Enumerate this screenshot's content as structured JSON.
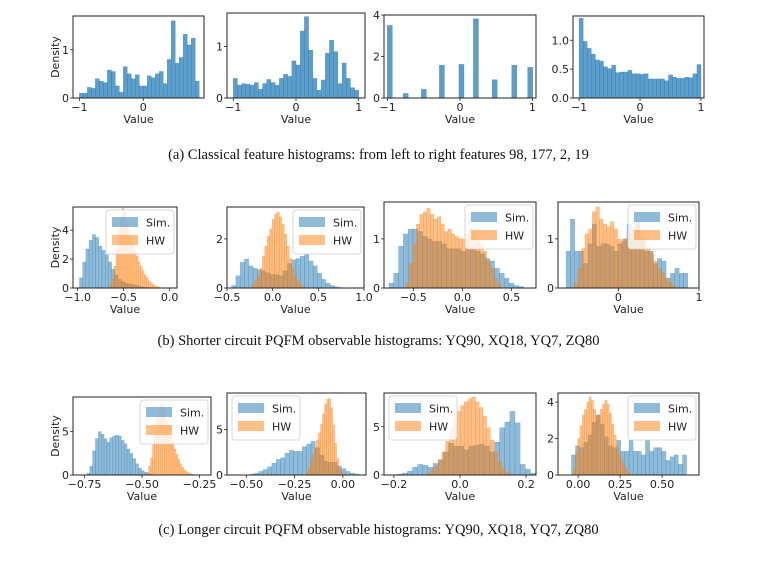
{
  "captions": {
    "a": "(a) Classical feature histograms: from left to right features 98, 177, 2, 19",
    "b": "(b) Shorter circuit PQFM observable histograms: YQ90, XQ18, YQ7, ZQ80",
    "c": "(c) Longer circuit PQFM observable histograms: YQ90, XQ18, YQ7, ZQ80"
  },
  "colors": {
    "sim": "#1f77b4",
    "hw": "#ff7f0e"
  },
  "chart_data": [
    {
      "type": "bar",
      "row": "a",
      "panel": 1,
      "feature": 98,
      "xlabel": "Value",
      "ylabel": "Density",
      "xlim": [
        -1.1,
        0.95
      ],
      "ylim": [
        0,
        1.7
      ],
      "xticks": [
        -1,
        0
      ],
      "xticklabels": [
        "−1",
        "0"
      ],
      "yticks": [
        0,
        1
      ],
      "yticklabels": [
        "0",
        "1"
      ],
      "bin_start": -1.0,
      "bin_width": 0.0625,
      "series": [
        {
          "name": "feature",
          "values": [
            0.1,
            0.1,
            0.22,
            0.2,
            0.4,
            0.35,
            0.32,
            0.58,
            0.55,
            0.25,
            0.12,
            0.65,
            0.5,
            0.4,
            0.48,
            0.25,
            0.25,
            0.46,
            0.42,
            0.5,
            0.55,
            0.3,
            0.8,
            1.6,
            0.72,
            0.84,
            1.32,
            1.1,
            1.24,
            0.35
          ]
        }
      ]
    },
    {
      "type": "bar",
      "row": "a",
      "panel": 2,
      "feature": 177,
      "xlabel": "Value",
      "ylabel": "",
      "xlim": [
        -1.1,
        1.1
      ],
      "ylim": [
        0,
        1.65
      ],
      "xticks": [
        -1,
        0,
        1
      ],
      "xticklabels": [
        "−1",
        "0",
        "1"
      ],
      "yticks": [
        0,
        1
      ],
      "yticklabels": [
        "0",
        "1"
      ],
      "bin_start": -1.0,
      "bin_width": 0.0667,
      "series": [
        {
          "name": "feature",
          "values": [
            0.38,
            0.25,
            0.28,
            0.27,
            0.25,
            0.3,
            0.17,
            0.28,
            0.36,
            0.3,
            0.25,
            0.38,
            0.46,
            0.42,
            0.72,
            0.64,
            1.3,
            1.58,
            0.93,
            0.38,
            0.15,
            0.35,
            0.87,
            1.12,
            0.9,
            0.28,
            0.68,
            0.38,
            0.2,
            0.15
          ]
        }
      ]
    },
    {
      "type": "bar",
      "row": "a",
      "panel": 3,
      "feature": 2,
      "xlabel": "Value",
      "ylabel": "",
      "xlim": [
        -1.05,
        1.05
      ],
      "ylim": [
        0,
        4.0
      ],
      "xticks": [
        -1,
        0,
        1
      ],
      "xticklabels": [
        "−1",
        "0",
        "1"
      ],
      "yticks": [
        0,
        2,
        4
      ],
      "yticklabels": [
        "0",
        "2",
        "4"
      ],
      "bar_width": 0.07,
      "series": [
        {
          "name": "feature",
          "x": [
            -0.97,
            -0.75,
            -0.5,
            -0.25,
            0.02,
            0.22,
            0.48,
            0.75,
            0.97
          ],
          "values": [
            3.5,
            0.22,
            0.42,
            1.58,
            1.62,
            3.82,
            0.88,
            1.58,
            1.48
          ]
        }
      ]
    },
    {
      "type": "bar",
      "row": "a",
      "panel": 4,
      "feature": 19,
      "xlabel": "Value",
      "ylabel": "",
      "xlim": [
        -1.1,
        1.05
      ],
      "ylim": [
        0,
        1.42
      ],
      "xticks": [
        -1,
        0,
        1
      ],
      "xticklabels": [
        "−1",
        "0",
        "1"
      ],
      "yticks": [
        0,
        0.5,
        1.0
      ],
      "yticklabels": [
        "0.0",
        "0.5",
        "1.0"
      ],
      "bin_start": -1.0,
      "bin_width": 0.0667,
      "series": [
        {
          "name": "feature",
          "values": [
            1.38,
            0.98,
            0.86,
            0.76,
            0.66,
            0.64,
            0.54,
            0.51,
            0.57,
            0.44,
            0.45,
            0.45,
            0.48,
            0.42,
            0.42,
            0.41,
            0.42,
            0.33,
            0.33,
            0.33,
            0.33,
            0.3,
            0.4,
            0.36,
            0.34,
            0.34,
            0.36,
            0.35,
            0.42,
            0.58
          ]
        }
      ]
    },
    {
      "type": "bar",
      "row": "b",
      "panel": 1,
      "observable": "YQ90",
      "xlabel": "Value",
      "ylabel": "Density",
      "xlim": [
        -1.05,
        0.08
      ],
      "ylim": [
        0,
        5.6
      ],
      "xticks": [
        -1.0,
        -0.5,
        0.0
      ],
      "xticklabels": [
        "−1.0",
        "−0.5",
        "0.0"
      ],
      "yticks": [
        0,
        2,
        4
      ],
      "yticklabels": [
        "0",
        "2",
        "4"
      ],
      "legend": [
        "Sim.",
        "HW"
      ],
      "legend_position": "top-right",
      "series": [
        {
          "name": "Sim.",
          "bin_start": -0.98,
          "bin_width": 0.035,
          "values": [
            0.7,
            1.8,
            2.7,
            3.3,
            3.7,
            3.5,
            2.9,
            2.6,
            2.3,
            1.8,
            1.3,
            0.9,
            0.6,
            0.45,
            0.35,
            0.3,
            0.25,
            0.2,
            0.15,
            0.1,
            0.06,
            0.03
          ]
        },
        {
          "name": "HW",
          "bin_start": -0.65,
          "bin_width": 0.022,
          "values": [
            0.2,
            0.6,
            1.5,
            2.7,
            4.0,
            4.8,
            5.5,
            5.2,
            4.5,
            4.0,
            3.6,
            3.1,
            2.6,
            2.2,
            1.8,
            1.5,
            1.2,
            0.9,
            0.7,
            0.5,
            0.35,
            0.25,
            0.15,
            0.1,
            0.05
          ]
        }
      ]
    },
    {
      "type": "bar",
      "row": "b",
      "panel": 2,
      "observable": "XQ18",
      "xlabel": "Value",
      "ylabel": "",
      "xlim": [
        -0.5,
        1.0
      ],
      "ylim": [
        0,
        3.3
      ],
      "xticks": [
        -0.5,
        0.0,
        0.5,
        1.0
      ],
      "xticklabels": [
        "−0.5",
        "0.0",
        "0.5",
        "1.0"
      ],
      "yticks": [
        0,
        2
      ],
      "yticklabels": [
        "0",
        "2"
      ],
      "legend": [
        "Sim.",
        "HW"
      ],
      "legend_position": "top-right",
      "series": [
        {
          "name": "Sim.",
          "bin_start": -0.45,
          "bin_width": 0.047,
          "values": [
            0.1,
            0.5,
            1.05,
            1.18,
            0.9,
            0.8,
            0.75,
            0.7,
            0.62,
            0.55,
            0.55,
            0.5,
            0.7,
            1.0,
            1.15,
            1.2,
            1.3,
            1.38,
            1.1,
            0.9,
            0.6,
            0.35,
            0.2,
            0.1,
            0.05,
            0.02
          ]
        },
        {
          "name": "HW",
          "bin_start": -0.25,
          "bin_width": 0.027,
          "values": [
            0.05,
            0.15,
            0.3,
            0.5,
            0.8,
            1.3,
            1.7,
            2.1,
            2.4,
            2.8,
            3.0,
            3.1,
            2.9,
            2.6,
            2.2,
            1.7,
            1.2,
            0.8,
            0.5,
            0.3,
            0.15,
            0.05
          ]
        }
      ]
    },
    {
      "type": "bar",
      "row": "b",
      "panel": 3,
      "observable": "YQ7",
      "xlabel": "Value",
      "ylabel": "",
      "xlim": [
        -0.8,
        0.75
      ],
      "ylim": [
        0,
        1.75
      ],
      "xticks": [
        -0.5,
        0.0,
        0.5
      ],
      "xticklabels": [
        "−0.5",
        "0.0",
        "0.5"
      ],
      "yticks": [
        0,
        1
      ],
      "yticklabels": [
        "0",
        "1"
      ],
      "legend": [
        "Sim.",
        "HW"
      ],
      "legend_position": "top-right",
      "series": [
        {
          "name": "Sim.",
          "bin_start": -0.75,
          "bin_width": 0.049,
          "values": [
            0.1,
            0.3,
            0.85,
            1.1,
            1.2,
            1.2,
            1.15,
            1.05,
            1.0,
            0.95,
            0.95,
            0.9,
            0.8,
            0.8,
            0.8,
            0.75,
            0.8,
            0.85,
            0.75,
            0.7,
            0.6,
            0.55,
            0.4,
            0.3,
            0.2,
            0.1,
            0.05,
            0.03
          ]
        },
        {
          "name": "HW",
          "bin_start": -0.58,
          "bin_width": 0.036,
          "values": [
            0.1,
            0.5,
            0.9,
            1.3,
            1.5,
            1.55,
            1.62,
            1.5,
            1.4,
            1.45,
            1.3,
            1.15,
            1.2,
            1.1,
            1.05,
            1.0,
            1.0,
            1.1,
            1.2,
            1.15,
            1.0,
            0.9,
            0.75,
            0.55,
            0.4,
            0.2,
            0.08
          ]
        }
      ]
    },
    {
      "type": "bar",
      "row": "b",
      "panel": 4,
      "observable": "ZQ80",
      "xlabel": "Value",
      "ylabel": "",
      "xlim": [
        -0.75,
        1.0
      ],
      "ylim": [
        0,
        1.75
      ],
      "xticks": [
        0,
        1
      ],
      "xticklabels": [
        "0",
        "1"
      ],
      "yticks": [
        0,
        1
      ],
      "yticklabels": [
        "0",
        "1"
      ],
      "legend": [
        "Sim.",
        "HW"
      ],
      "legend_position": "top-right",
      "series": [
        {
          "name": "Sim.",
          "bin_start": -0.65,
          "bin_width": 0.054,
          "values": [
            0.75,
            1.4,
            0.75,
            0.75,
            0.5,
            0.9,
            1.3,
            0.85,
            0.9,
            0.9,
            0.85,
            0.75,
            0.9,
            1.0,
            1.3,
            1.0,
            1.35,
            1.0,
            0.75,
            0.75,
            0.5,
            0.6,
            0.55,
            0.2,
            0.3,
            0.4,
            0.3,
            0.3
          ]
        },
        {
          "name": "HW",
          "bin_start": -0.55,
          "bin_width": 0.045,
          "values": [
            0.1,
            0.4,
            0.8,
            1.1,
            1.2,
            1.55,
            1.65,
            1.4,
            1.3,
            1.25,
            1.35,
            1.2,
            1.0,
            0.95,
            1.0,
            1.1,
            1.25,
            1.3,
            1.15,
            1.0,
            0.85,
            0.7,
            0.55,
            0.4,
            0.3,
            0.2,
            0.12,
            0.05
          ]
        }
      ]
    },
    {
      "type": "bar",
      "row": "c",
      "panel": 1,
      "observable": "YQ90",
      "xlabel": "Value",
      "ylabel": "Density",
      "xlim": [
        -0.8,
        -0.2
      ],
      "ylim": [
        0,
        9.0
      ],
      "xticks": [
        -0.75,
        -0.5,
        -0.25
      ],
      "xticklabels": [
        "−0.75",
        "−0.50",
        "−0.25"
      ],
      "yticks": [
        0,
        5
      ],
      "yticklabels": [
        "0",
        "5"
      ],
      "legend": [
        "Sim.",
        "HW"
      ],
      "legend_position": "top-right",
      "series": [
        {
          "name": "Sim.",
          "bin_start": -0.74,
          "bin_width": 0.0125,
          "values": [
            0.2,
            1.0,
            2.8,
            4.2,
            5.0,
            4.7,
            4.2,
            3.8,
            4.3,
            4.5,
            4.6,
            4.5,
            4.0,
            3.6,
            3.0,
            2.5,
            1.9,
            1.3,
            0.8,
            0.5,
            0.3,
            0.15,
            0.08,
            0.03
          ]
        },
        {
          "name": "HW",
          "bin_start": -0.48,
          "bin_width": 0.0085,
          "values": [
            0.3,
            1.0,
            2.0,
            3.5,
            5.2,
            6.6,
            7.5,
            8.3,
            8.0,
            7.2,
            6.3,
            5.5,
            4.6,
            3.8,
            3.0,
            2.4,
            1.8,
            1.3,
            0.9,
            0.6,
            0.4,
            0.25,
            0.15,
            0.08
          ]
        }
      ]
    },
    {
      "type": "bar",
      "row": "c",
      "panel": 2,
      "observable": "XQ18",
      "xlabel": "Value",
      "ylabel": "",
      "xlim": [
        -0.6,
        0.12
      ],
      "ylim": [
        0,
        9.0
      ],
      "xticks": [
        -0.5,
        -0.25,
        0.0
      ],
      "xticklabels": [
        "−0.50",
        "−0.25",
        "0.00"
      ],
      "yticks": [
        0,
        5
      ],
      "yticklabels": [
        "0",
        "5"
      ],
      "legend": [
        "Sim.",
        "HW"
      ],
      "legend_position": "top-left",
      "series": [
        {
          "name": "Sim.",
          "bin_start": -0.48,
          "bin_width": 0.0225,
          "values": [
            0.1,
            0.2,
            0.4,
            0.6,
            0.9,
            1.3,
            1.7,
            1.9,
            2.4,
            2.7,
            2.6,
            2.6,
            3.1,
            3.4,
            3.7,
            3.0,
            2.2,
            1.5,
            1.4,
            1.4,
            1.0,
            0.7,
            0.4,
            0.2,
            0.1
          ]
        },
        {
          "name": "HW",
          "bin_start": -0.2,
          "bin_width": 0.0105,
          "values": [
            0.1,
            0.3,
            0.8,
            1.5,
            2.3,
            3.0,
            3.8,
            4.6,
            5.6,
            6.7,
            7.8,
            8.3,
            8.4,
            7.4,
            5.5,
            3.5,
            1.8,
            0.8,
            0.3,
            0.1
          ]
        }
      ]
    },
    {
      "type": "bar",
      "row": "c",
      "panel": 3,
      "observable": "YQ7",
      "xlabel": "Value",
      "ylabel": "",
      "xlim": [
        -0.23,
        0.23
      ],
      "ylim": [
        0,
        8.5
      ],
      "xticks": [
        -0.2,
        0.0,
        0.2
      ],
      "xticklabels": [
        "−0.2",
        "0.0",
        "0.2"
      ],
      "yticks": [
        0,
        5
      ],
      "yticklabels": [
        "0",
        "5"
      ],
      "legend": [
        "Sim.",
        "HW"
      ],
      "legend_position": "top-left",
      "series": [
        {
          "name": "Sim.",
          "bin_start": -0.19,
          "bin_width": 0.0155,
          "values": [
            0.1,
            0.2,
            0.4,
            0.8,
            1.1,
            1.0,
            0.8,
            1.2,
            1.6,
            2.4,
            3.3,
            3.0,
            3.0,
            2.6,
            3.0,
            3.1,
            3.2,
            3.0,
            2.4,
            3.4,
            4.9,
            5.5,
            6.6,
            5.4,
            1.1,
            0.6,
            0.2
          ]
        },
        {
          "name": "HW",
          "bin_start": -0.1,
          "bin_width": 0.0113,
          "values": [
            0.2,
            0.5,
            0.9,
            1.5,
            2.4,
            3.5,
            4.6,
            5.8,
            6.6,
            7.2,
            7.6,
            7.9,
            8.1,
            7.6,
            7.0,
            6.1,
            4.9,
            3.6,
            2.4,
            1.4,
            0.7,
            0.3,
            0.1
          ]
        }
      ]
    },
    {
      "type": "bar",
      "row": "c",
      "panel": 4,
      "observable": "ZQ80",
      "xlabel": "Value",
      "ylabel": "",
      "xlim": [
        -0.12,
        0.72
      ],
      "ylim": [
        0,
        4.5
      ],
      "xticks": [
        0.0,
        0.25,
        0.5
      ],
      "xticklabels": [
        "0.00",
        "0.25",
        "0.50"
      ],
      "yticks": [
        0,
        2,
        4
      ],
      "yticklabels": [
        "0",
        "2",
        "4"
      ],
      "legend": [
        "Sim.",
        "HW"
      ],
      "legend_position": "top-right",
      "series": [
        {
          "name": "Sim.",
          "bin_start": -0.04,
          "bin_width": 0.0245,
          "values": [
            1.1,
            1.6,
            1.5,
            1.8,
            2.2,
            2.9,
            3.3,
            2.8,
            2.1,
            1.6,
            1.5,
            1.9,
            1.3,
            1.3,
            1.9,
            1.3,
            1.3,
            1.1,
            1.9,
            1.3,
            1.5,
            1.5,
            1.3,
            0.8,
            1.0,
            1.1,
            0.6,
            1.1
          ]
        },
        {
          "name": "HW",
          "bin_start": -0.03,
          "bin_width": 0.0135,
          "values": [
            0.3,
            1.2,
            2.0,
            2.7,
            3.3,
            3.6,
            4.0,
            4.3,
            4.1,
            3.6,
            3.2,
            3.3,
            3.6,
            3.9,
            4.1,
            3.9,
            3.4,
            2.8,
            2.2,
            1.6,
            1.2,
            0.8,
            0.5,
            0.3,
            0.15,
            0.05
          ]
        }
      ]
    }
  ]
}
